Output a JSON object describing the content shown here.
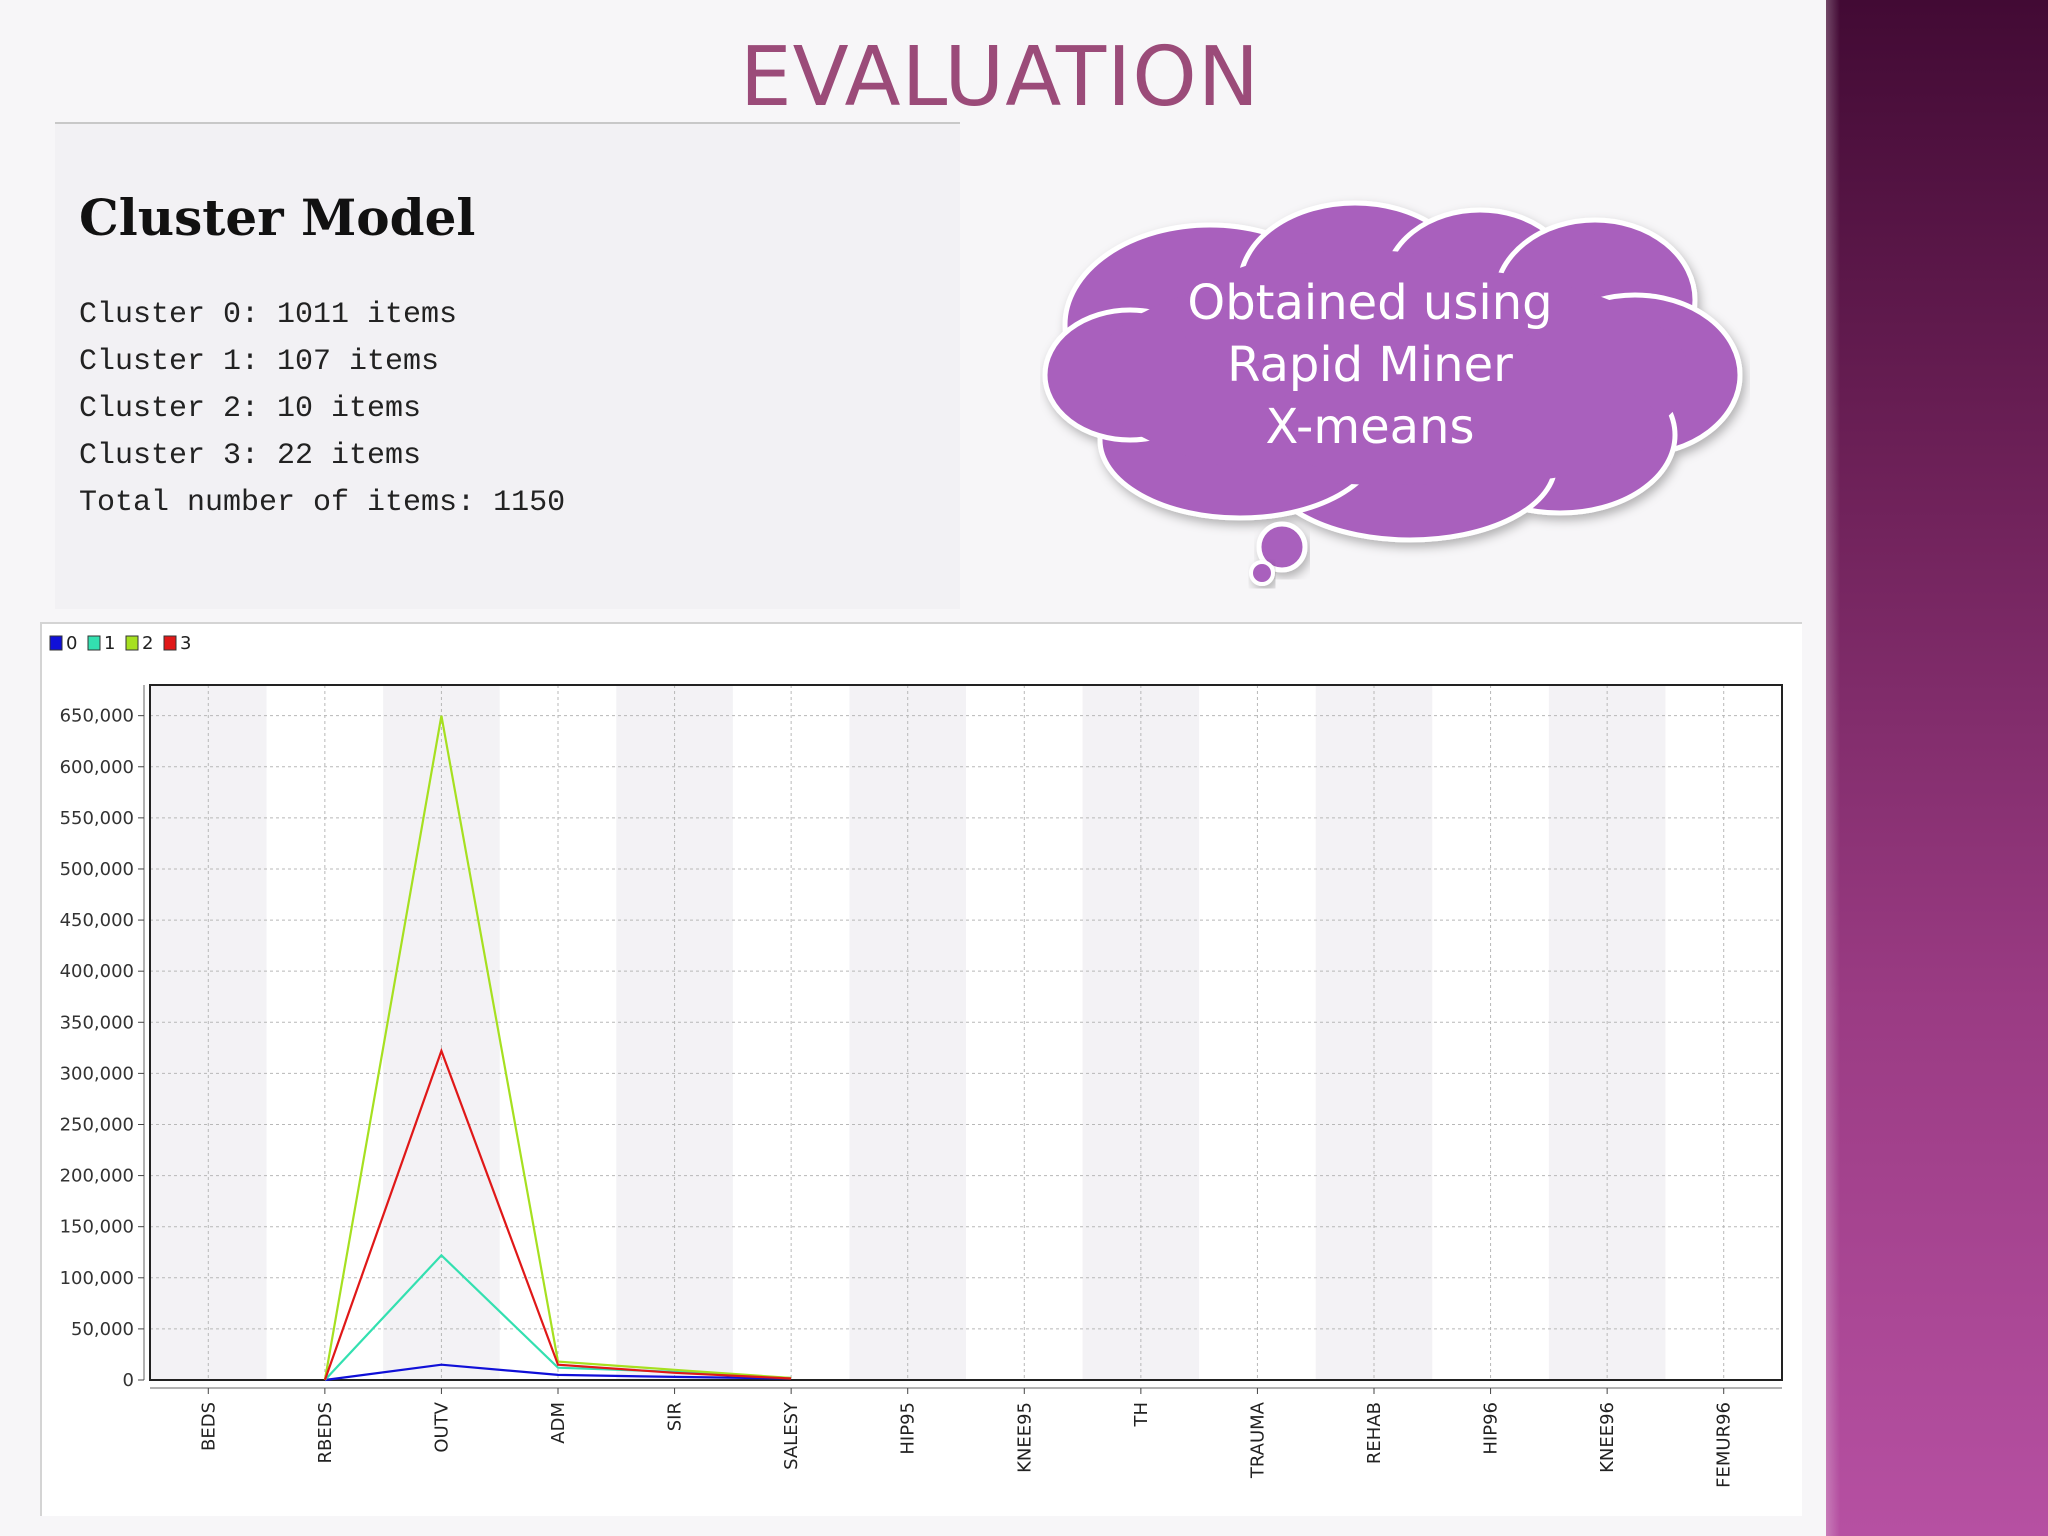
{
  "slide": {
    "title": "EVALUATION",
    "cluster_model": {
      "heading": "Cluster Model",
      "lines": [
        "Cluster 0: 1011 items",
        "Cluster 1: 107 items",
        "Cluster 2: 10 items",
        "Cluster 3: 22 items",
        "Total number of items: 1150"
      ]
    },
    "callout": {
      "lines": [
        "Obtained using",
        "Rapid Miner",
        "X-means"
      ]
    },
    "colors": {
      "title": "#9b4b79",
      "callout_fill": "#a960bd",
      "sidebar_top": "#420a34",
      "sidebar_bottom": "#b650a2"
    }
  },
  "chart_data": {
    "type": "line",
    "categories": [
      "BEDS",
      "RBEDS",
      "OUTV",
      "ADM",
      "SIR",
      "SALESY",
      "HIP95",
      "KNEE95",
      "TH",
      "TRAUMA",
      "REHAB",
      "HIP96",
      "KNEE96",
      "FEMUR96"
    ],
    "series": [
      {
        "name": "0",
        "color": "#1010d8",
        "values": [
          null,
          0,
          15000,
          5000,
          3000,
          1500,
          null,
          null,
          null,
          null,
          null,
          null,
          null,
          null
        ]
      },
      {
        "name": "1",
        "color": "#33e0b0",
        "values": [
          null,
          0,
          122000,
          12000,
          8000,
          2000,
          null,
          null,
          null,
          null,
          null,
          null,
          null,
          null
        ]
      },
      {
        "name": "2",
        "color": "#a6e020",
        "values": [
          null,
          0,
          650000,
          18000,
          10000,
          2000,
          null,
          null,
          null,
          null,
          null,
          null,
          null,
          null
        ]
      },
      {
        "name": "3",
        "color": "#e01818",
        "values": [
          null,
          0,
          322000,
          15000,
          7000,
          1500,
          null,
          null,
          null,
          null,
          null,
          null,
          null,
          null
        ]
      }
    ],
    "ylim": [
      0,
      680000
    ],
    "yticks": [
      "0",
      "50,000",
      "100,000",
      "150,000",
      "200,000",
      "250,000",
      "300,000",
      "350,000",
      "400,000",
      "450,000",
      "500,000",
      "550,000",
      "600,000",
      "650,000"
    ],
    "ytick_values": [
      0,
      50000,
      100000,
      150000,
      200000,
      250000,
      300000,
      350000,
      400000,
      450000,
      500000,
      550000,
      600000,
      650000
    ],
    "grid": true,
    "legend_position": "top-left",
    "title": "",
    "xlabel": "",
    "ylabel": ""
  }
}
